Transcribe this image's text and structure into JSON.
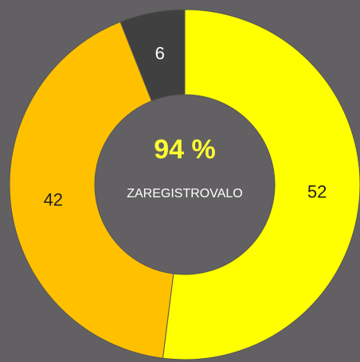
{
  "chart_data": {
    "type": "donut",
    "categories": [
      null,
      null,
      null
    ],
    "values": [
      52,
      42,
      6
    ],
    "colors": [
      "#ffff00",
      "#ffc000",
      "#404040"
    ],
    "label_colors": [
      "#222222",
      "#222222",
      "#ffffff"
    ],
    "center_value": "94 %",
    "center_label": "ZAREGISTROVALO"
  }
}
